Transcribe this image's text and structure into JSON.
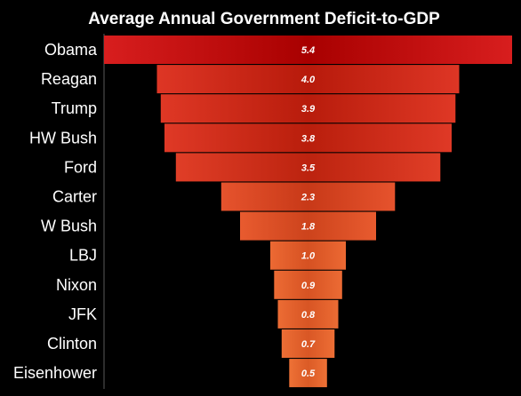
{
  "chart_data": {
    "type": "bar",
    "orientation": "horizontal-centered",
    "title": "Average Annual Government Deficit-to-GDP",
    "categories": [
      "Obama",
      "Reagan",
      "Trump",
      "HW Bush",
      "Ford",
      "Carter",
      "W Bush",
      "LBJ",
      "Nixon",
      "JFK",
      "Clinton",
      "Eisenhower"
    ],
    "values": [
      5.4,
      4.0,
      3.9,
      3.8,
      3.5,
      2.3,
      1.8,
      1.0,
      0.9,
      0.8,
      0.7,
      0.5
    ],
    "value_labels": [
      "5.4",
      "4.0",
      "3.9",
      "3.8",
      "3.5",
      "2.3",
      "1.8",
      "1.0",
      "0.9",
      "0.8",
      "0.7",
      "0.5"
    ],
    "grid": false,
    "legend": "none",
    "colors": {
      "background": "#000000",
      "bar_high_edge": "#d81e1e",
      "bar_high_center": "#a80000",
      "bar_low_edge": "#f07a38",
      "bar_low_center": "#e0642a",
      "text": "#ffffff"
    }
  }
}
